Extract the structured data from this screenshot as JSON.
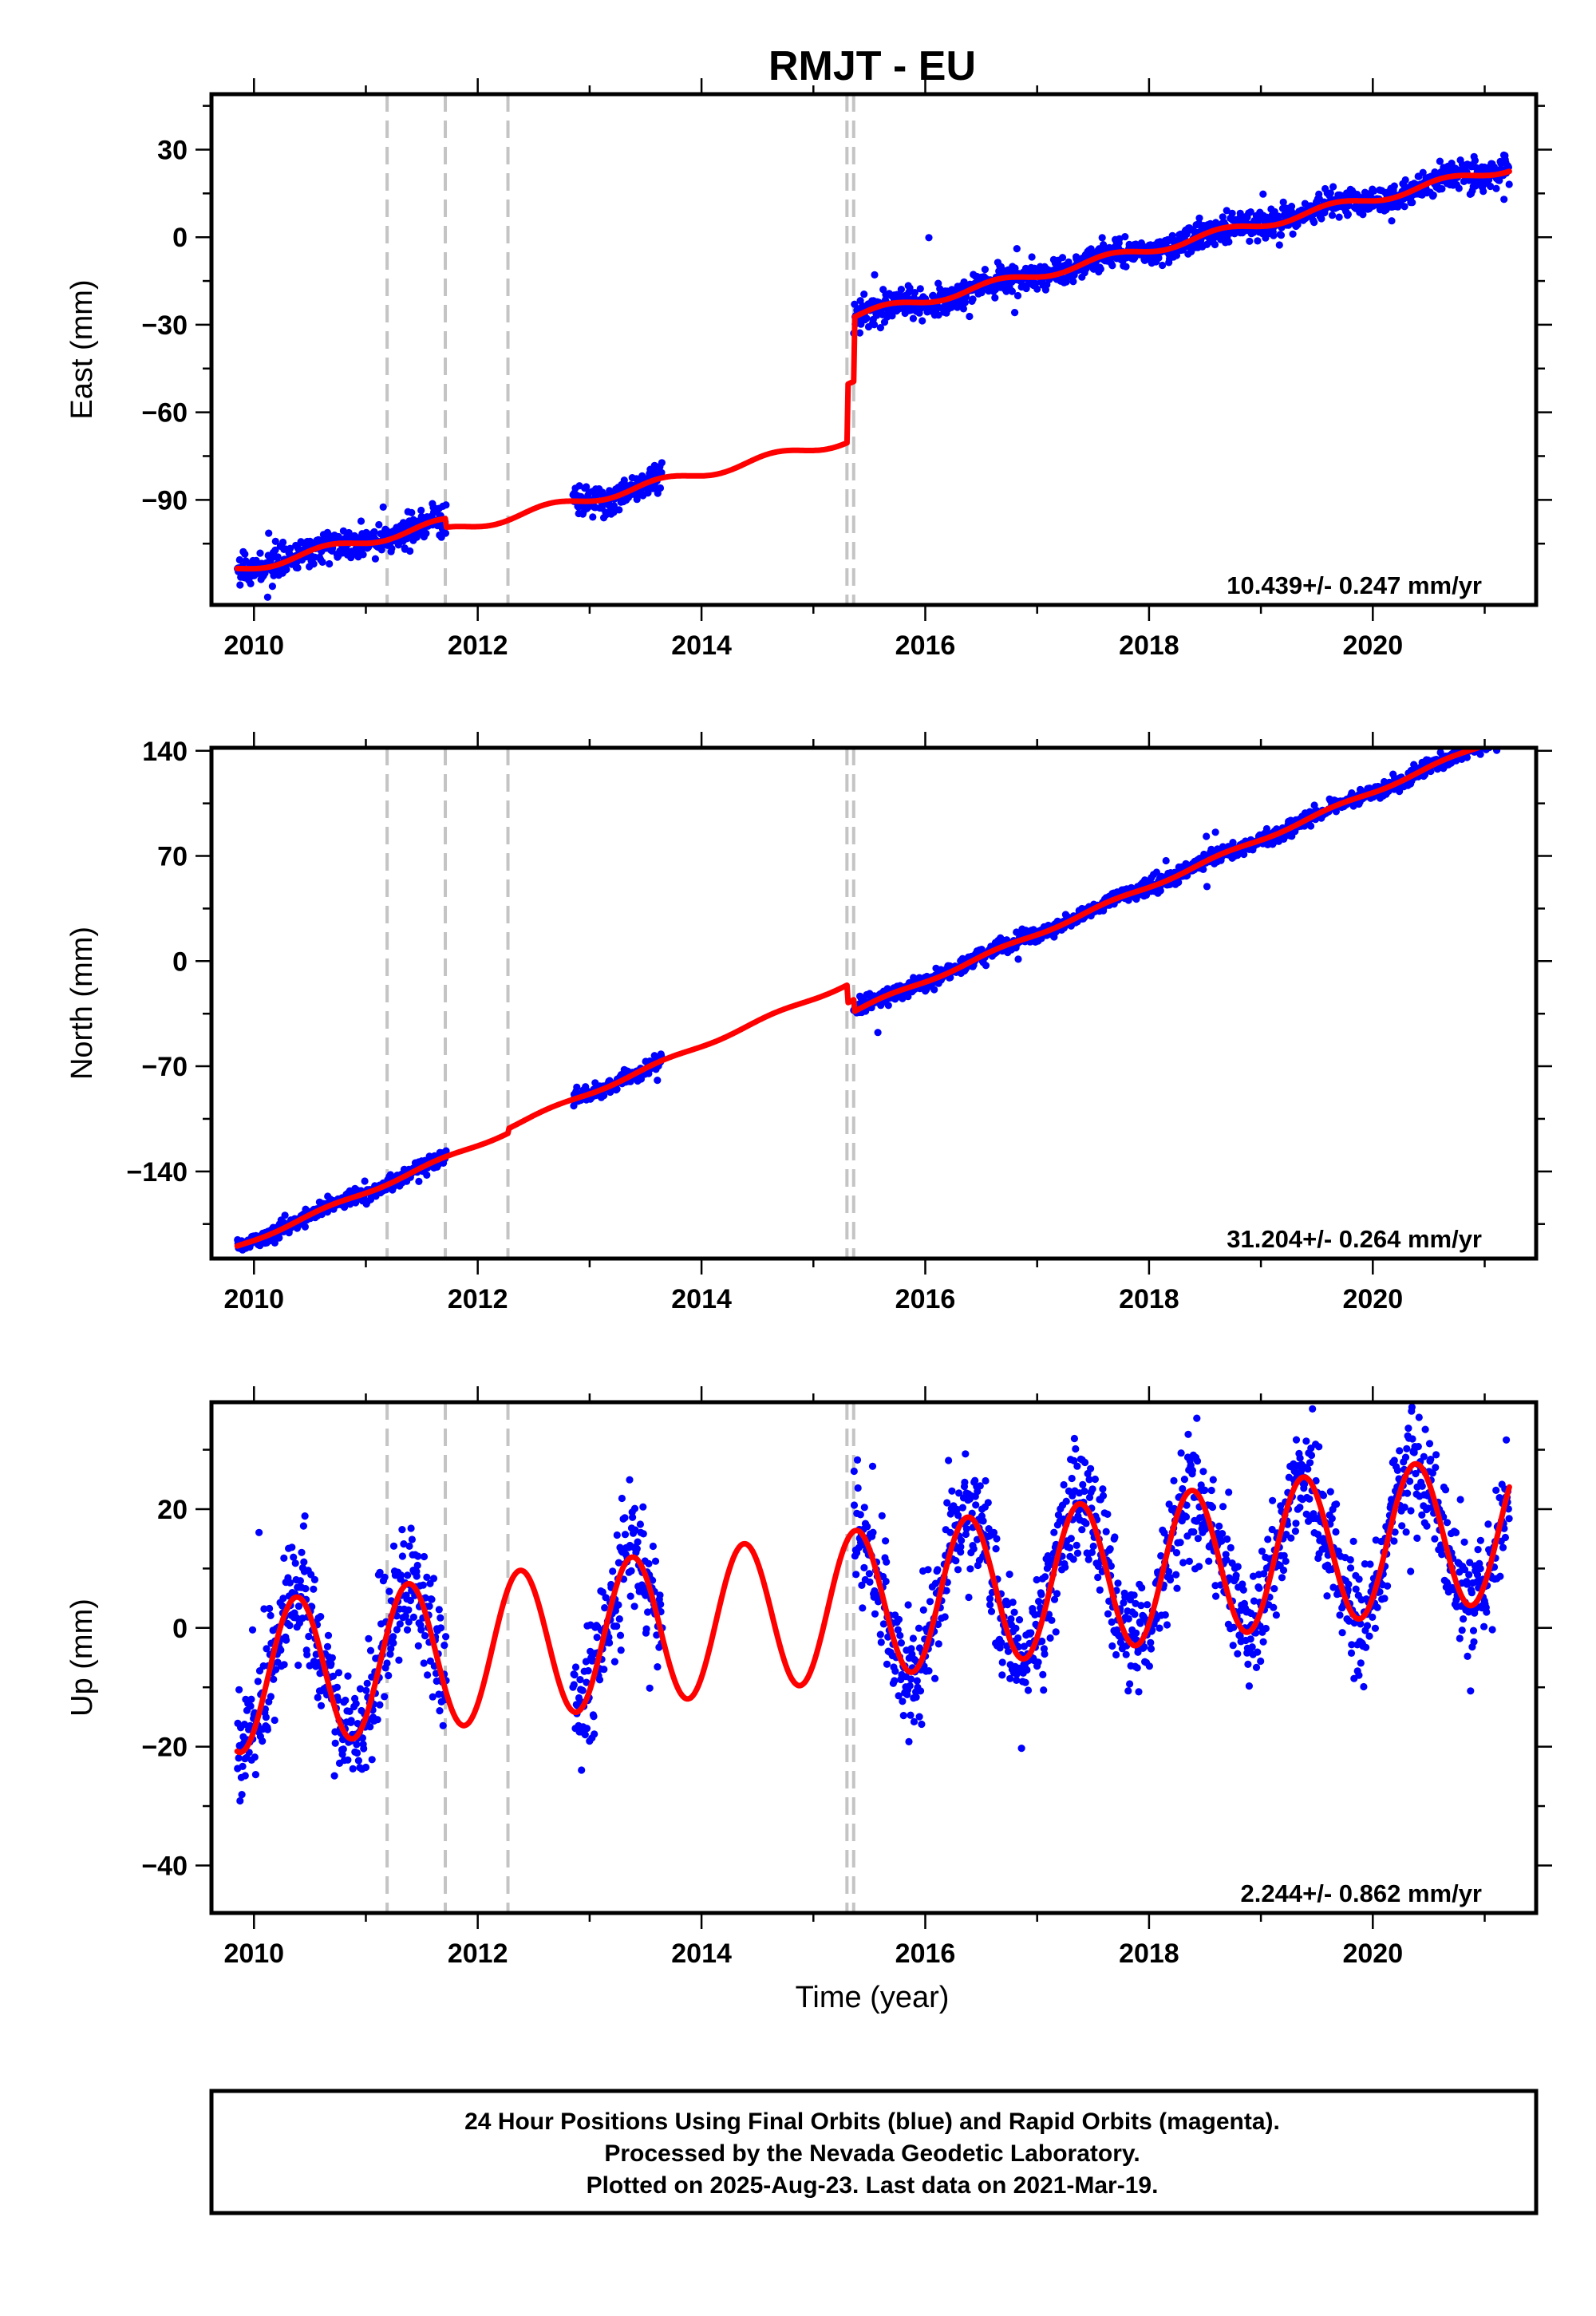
{
  "title": "RMJT - EU",
  "xlabel": "Time (year)",
  "footer": {
    "line1": "24 Hour Positions Using Final Orbits (blue) and Rapid Orbits (magenta).",
    "line2": "Processed by the Nevada Geodetic Laboratory.",
    "line3": "Plotted on 2025-Aug-23. Last data on 2021-Mar-19."
  },
  "colors": {
    "data_points": "#0000ff",
    "model_fit": "#ff0000",
    "offset_lines": "#c4c4c4"
  },
  "chart_data": [
    {
      "type": "scatter",
      "ylabel": "East (mm)",
      "rate": "10.439+/- 0.247 mm/yr",
      "xlim": [
        2009.62,
        2021.46
      ],
      "ylim": [
        -126,
        49
      ],
      "xticks": [
        2010,
        2012,
        2014,
        2016,
        2018,
        2020
      ],
      "yticks": [
        -90,
        -60,
        -30,
        0,
        30
      ],
      "offsets": [
        2011.19,
        2011.71,
        2012.27,
        2015.3,
        2015.36
      ],
      "breaks": [
        {
          "t": 2011.19,
          "d": 0
        },
        {
          "t": 2011.71,
          "d": -3
        },
        {
          "t": 2012.27,
          "d": 0
        },
        {
          "t": 2015.3,
          "d": 20
        },
        {
          "t": 2015.36,
          "d": 22
        }
      ],
      "data_segments": [
        [
          2009.85,
          2011.72
        ],
        [
          2012.85,
          2013.65
        ],
        [
          2015.36,
          2021.22
        ]
      ],
      "model": {
        "t0": 2009.85,
        "v0": -114,
        "rate": 8.7,
        "amp": 1.5,
        "phase": 0.4
      },
      "noise": 2.5,
      "series": [
        {
          "color": "#0000ff"
        },
        {
          "color": "#ff0000"
        }
      ]
    },
    {
      "type": "scatter",
      "ylabel": "North (mm)",
      "rate": "31.204+/- 0.264 mm/yr",
      "xlim": [
        2009.62,
        2021.46
      ],
      "ylim": [
        -198,
        142
      ],
      "xticks": [
        2010,
        2012,
        2014,
        2016,
        2018,
        2020
      ],
      "yticks": [
        -140,
        -70,
        0,
        70,
        140
      ],
      "offsets": [
        2011.19,
        2011.71,
        2012.27,
        2015.3,
        2015.36
      ],
      "breaks": [
        {
          "t": 2011.19,
          "d": 0
        },
        {
          "t": 2011.71,
          "d": 0
        },
        {
          "t": 2012.27,
          "d": 3
        },
        {
          "t": 2015.3,
          "d": -12
        },
        {
          "t": 2015.36,
          "d": -8
        }
      ],
      "data_segments": [
        [
          2009.85,
          2011.72
        ],
        [
          2012.85,
          2013.65
        ],
        [
          2015.36,
          2021.22
        ]
      ],
      "model": {
        "t0": 2009.85,
        "v0": -190,
        "rate": 31.5,
        "amp": 1.2,
        "phase": 0.4
      },
      "noise": 2.5,
      "series": [
        {
          "color": "#0000ff"
        },
        {
          "color": "#ff0000"
        }
      ]
    },
    {
      "type": "scatter",
      "ylabel": "Up (mm)",
      "rate": "2.244+/- 0.862 mm/yr",
      "xlim": [
        2009.62,
        2021.46
      ],
      "ylim": [
        -48,
        38
      ],
      "xticks": [
        2010,
        2012,
        2014,
        2016,
        2018,
        2020
      ],
      "yticks": [
        -40,
        -20,
        0,
        20
      ],
      "offsets": [
        2011.19,
        2011.71,
        2012.27,
        2015.3,
        2015.36
      ],
      "breaks": [],
      "data_segments": [
        [
          2009.85,
          2011.72
        ],
        [
          2012.85,
          2013.65
        ],
        [
          2015.36,
          2021.22
        ]
      ],
      "model": {
        "t0": 2009.85,
        "v0": -8.5,
        "rate": 2.244,
        "amp": 12.5,
        "phase": 0.13
      },
      "noise": 5,
      "series": [
        {
          "color": "#0000ff"
        },
        {
          "color": "#ff0000"
        }
      ]
    }
  ]
}
